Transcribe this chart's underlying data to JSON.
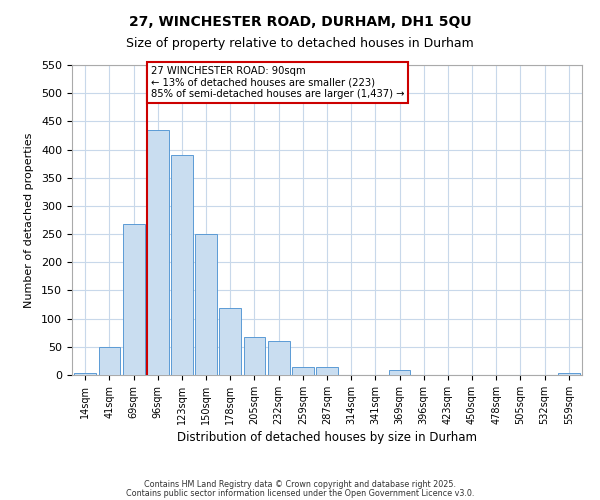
{
  "title": "27, WINCHESTER ROAD, DURHAM, DH1 5QU",
  "subtitle": "Size of property relative to detached houses in Durham",
  "xlabel": "Distribution of detached houses by size in Durham",
  "ylabel": "Number of detached properties",
  "bar_labels": [
    "14sqm",
    "41sqm",
    "69sqm",
    "96sqm",
    "123sqm",
    "150sqm",
    "178sqm",
    "205sqm",
    "232sqm",
    "259sqm",
    "287sqm",
    "314sqm",
    "341sqm",
    "369sqm",
    "396sqm",
    "423sqm",
    "450sqm",
    "478sqm",
    "505sqm",
    "532sqm",
    "559sqm"
  ],
  "bar_heights": [
    3,
    50,
    268,
    435,
    390,
    250,
    118,
    68,
    60,
    15,
    15,
    0,
    0,
    8,
    0,
    0,
    0,
    0,
    0,
    0,
    3
  ],
  "bar_color": "#c9ddf0",
  "bar_edge_color": "#5b9bd5",
  "ylim": [
    0,
    550
  ],
  "yticks": [
    0,
    50,
    100,
    150,
    200,
    250,
    300,
    350,
    400,
    450,
    500,
    550
  ],
  "vline_bar_index": 3,
  "vline_color": "#cc0000",
  "annotation_title": "27 WINCHESTER ROAD: 90sqm",
  "annotation_line1": "← 13% of detached houses are smaller (223)",
  "annotation_line2": "85% of semi-detached houses are larger (1,437) →",
  "annotation_box_color": "#cc0000",
  "footnote1": "Contains HM Land Registry data © Crown copyright and database right 2025.",
  "footnote2": "Contains public sector information licensed under the Open Government Licence v3.0.",
  "background_color": "#ffffff",
  "grid_color": "#c8d8ea"
}
